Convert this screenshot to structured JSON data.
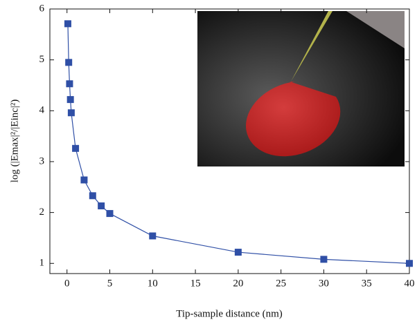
{
  "chart_data": {
    "type": "line",
    "xlabel": "Tip-sample distance (nm)",
    "ylabel": "log (|Emax|²/|Einc|²)",
    "x": [
      0.1,
      0.2,
      0.3,
      0.4,
      0.5,
      1,
      2,
      3,
      4,
      5,
      10,
      20,
      30,
      40
    ],
    "series": [
      {
        "color": "#2f4fa6",
        "values": [
          5.71,
          4.95,
          4.53,
          4.22,
          3.96,
          3.26,
          2.64,
          2.33,
          2.13,
          1.98,
          1.54,
          1.22,
          1.08,
          1.0
        ]
      }
    ],
    "xlim": [
      -2,
      40
    ],
    "xticks": [
      0,
      5,
      10,
      15,
      20,
      25,
      30,
      35,
      40
    ],
    "ylim": [
      0.8,
      6
    ],
    "yticks": [
      1,
      2,
      3,
      4,
      5,
      6
    ]
  }
}
